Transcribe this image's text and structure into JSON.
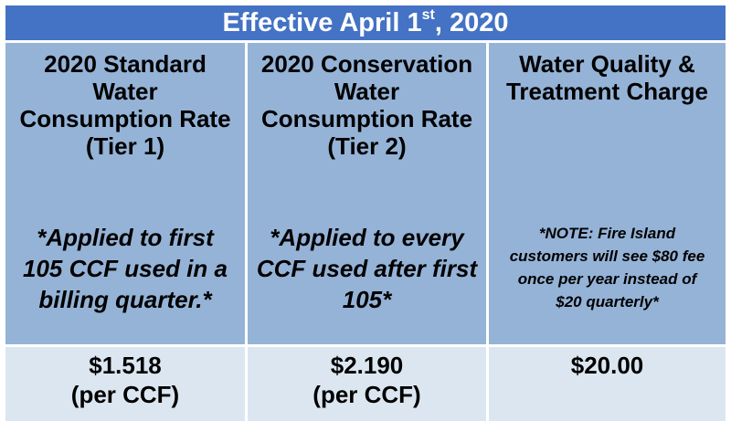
{
  "title": {
    "prefix": "Effective April 1",
    "superscript": "st",
    "suffix": ", 2020"
  },
  "columns": [
    {
      "heading_lines": [
        "2020 Standard",
        "Water",
        "Consumption Rate",
        "(Tier 1)"
      ],
      "note_lines": [
        "*Applied to first",
        "105 CCF used in a",
        "billing quarter.*"
      ],
      "value": "$1.518",
      "unit": "(per CCF)"
    },
    {
      "heading_lines": [
        "2020 Conservation",
        "Water",
        "Consumption Rate",
        "(Tier 2)"
      ],
      "note_lines": [
        "*Applied to every",
        "CCF used after first",
        "105*"
      ],
      "value": "$2.190",
      "unit": "(per CCF)"
    },
    {
      "heading_lines": [
        "Water Quality &",
        "Treatment Charge"
      ],
      "note_lines": [
        "*NOTE: Fire Island",
        "customers will see $80 fee",
        "once per year instead of",
        "$20 quarterly*"
      ],
      "value": "$20.00",
      "unit": ""
    }
  ],
  "colors": {
    "title_background": "#4472c4",
    "header_background": "#95b3d7",
    "value_background": "#dce6f1",
    "title_text": "#ffffff"
  }
}
